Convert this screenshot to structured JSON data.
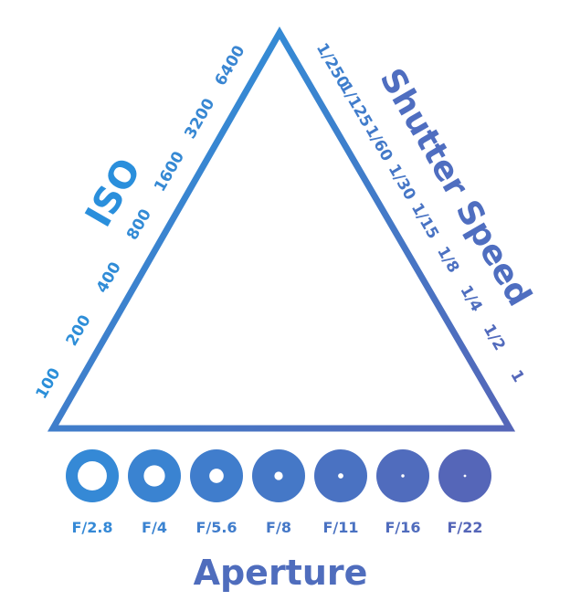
{
  "iso": {
    "title": "ISO",
    "values": [
      "100",
      "200",
      "400",
      "800",
      "1600",
      "3200",
      "6400"
    ]
  },
  "shutter": {
    "title": "Shutter Speed",
    "values": [
      "1/250",
      "1/125",
      "1/60",
      "1/30",
      "1/15",
      "1/8",
      "1/4",
      "1/2",
      "1"
    ]
  },
  "aperture": {
    "title": "Aperture",
    "stops": [
      {
        "label": "F/2.8",
        "opening": 0.55
      },
      {
        "label": "F/4",
        "opening": 0.4
      },
      {
        "label": "F/5.6",
        "opening": 0.27
      },
      {
        "label": "F/8",
        "opening": 0.16
      },
      {
        "label": "F/11",
        "opening": 0.1
      },
      {
        "label": "F/16",
        "opening": 0.06
      },
      {
        "label": "F/22",
        "opening": 0.035
      }
    ]
  },
  "colors": {
    "gradient_start": "#2a96de",
    "gradient_end": "#5566b8"
  }
}
